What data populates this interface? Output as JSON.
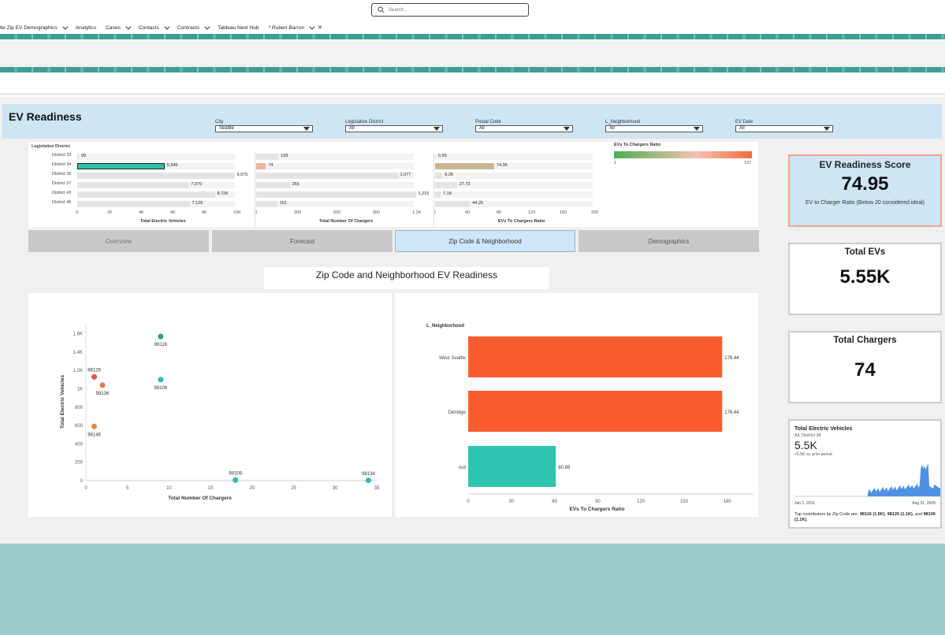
{
  "search": {
    "placeholder": "Search..."
  },
  "nav": [
    {
      "label": "ttle Zip EV Demographics",
      "chevron": true
    },
    {
      "label": "Analytics",
      "chevron": false
    },
    {
      "label": "Cases",
      "chevron": true
    },
    {
      "label": "Contacts",
      "chevron": true
    },
    {
      "label": "Contracts",
      "chevron": true
    },
    {
      "label": "Tableau Next Hub",
      "chevron": false
    },
    {
      "label": "* Ruben Barron",
      "chevron": true,
      "close": "✕"
    }
  ],
  "dashboard": {
    "title": "EV Readiness",
    "filters": [
      {
        "label": "City",
        "value": "Seattle"
      },
      {
        "label": "Legislative District",
        "value": "All"
      },
      {
        "label": "Postal Code",
        "value": "All"
      },
      {
        "label": "L_Neighborhood",
        "value": "All"
      },
      {
        "label": "EV Date",
        "value": "All"
      }
    ]
  },
  "bar_panels": {
    "row_header": "Legislative District",
    "districts": [
      "District 33",
      "District 34",
      "District 36",
      "District 37",
      "District 43",
      "District 46"
    ],
    "ev": {
      "title": "Total Electric Vehicles",
      "values": [
        99,
        5546,
        9975,
        7070,
        8726,
        7125
      ],
      "labels": [
        "99",
        "5,546",
        "9,975",
        "7,070",
        "8,726",
        "7,125"
      ],
      "ticks": [
        "0",
        "2K",
        "4K",
        "6K",
        "8K",
        "10K"
      ],
      "max": 10000,
      "color": "#2bbfa9",
      "selected": 1
    },
    "chargers": {
      "title": "Total Number Of Chargers",
      "values": [
        169,
        74,
        1077,
        255,
        1215,
        161
      ],
      "labels": [
        "169",
        "74",
        "1,077",
        "255",
        "1,215",
        "161"
      ],
      "ticks": [
        "0",
        "300",
        "600",
        "900",
        "1.2K"
      ],
      "max": 1200,
      "color": "#f4b09e"
    },
    "ratio": {
      "title": "EVs To Chargers Ratio",
      "values": [
        0.59,
        74.95,
        9.26,
        27.73,
        7.18,
        44.25
      ],
      "labels": [
        "0.59",
        "74.95",
        "9.26",
        "27.73",
        "7.18",
        "44.25"
      ],
      "ticks": [
        "0",
        "40",
        "80",
        "120",
        "160",
        "200"
      ],
      "max": 200,
      "color": "#c9b58e"
    },
    "legend": {
      "title": "EVs To Chargers Ratio",
      "min": "1",
      "max": "197"
    }
  },
  "tabs": [
    "Overview",
    "Forecast",
    "Zip Code & Neighborhood",
    "Demographics"
  ],
  "section_title": "Zip Code and Neighborhood EV Readiness",
  "scatter": {
    "xlabel": "Total Number Of Chargers",
    "ylabel": "Total Electric Vehicles",
    "xticks": [
      "0",
      "5",
      "10",
      "15",
      "20",
      "25",
      "30",
      "35"
    ],
    "yticks": [
      "0",
      "200",
      "400",
      "600",
      "800",
      "1K",
      "1.2K",
      "1.4K",
      "1.6K"
    ],
    "points": [
      {
        "label": "98116",
        "x": 9,
        "y": 1570,
        "color": "#2e9b80"
      },
      {
        "label": "98126",
        "x": 1,
        "y": 1130,
        "color": "#e8563a"
      },
      {
        "label": "98136",
        "x": 2,
        "y": 1040,
        "color": "#e07a3e"
      },
      {
        "label": "98106",
        "x": 9,
        "y": 1100,
        "color": "#2bbfa9"
      },
      {
        "label": "98146",
        "x": 1,
        "y": 590,
        "color": "#e08a3e"
      },
      {
        "label": "98108",
        "x": 18,
        "y": 5,
        "color": "#2bbfa9"
      },
      {
        "label": "98134",
        "x": 34,
        "y": 2,
        "color": "#2bbfa9"
      }
    ]
  },
  "chart_data": [
    {
      "type": "bar",
      "ylabel": "Legislative District",
      "xlabel": "Total Electric Vehicles",
      "categories": [
        "District 33",
        "District 34",
        "District 36",
        "District 37",
        "District 43",
        "District 46"
      ],
      "values": [
        99,
        5546,
        9975,
        7070,
        8726,
        7125
      ],
      "xlim": [
        0,
        10000
      ]
    },
    {
      "type": "bar",
      "xlabel": "Total Number Of Chargers",
      "categories": [
        "District 33",
        "District 34",
        "District 36",
        "District 37",
        "District 43",
        "District 46"
      ],
      "values": [
        169,
        74,
        1077,
        255,
        1215,
        161
      ],
      "xlim": [
        0,
        1200
      ]
    },
    {
      "type": "bar",
      "xlabel": "EVs To Chargers Ratio",
      "categories": [
        "District 33",
        "District 34",
        "District 36",
        "District 37",
        "District 43",
        "District 46"
      ],
      "values": [
        0.59,
        74.95,
        9.26,
        27.73,
        7.18,
        44.25
      ],
      "xlim": [
        0,
        200
      ]
    },
    {
      "type": "scatter",
      "xlabel": "Total Number Of Chargers",
      "ylabel": "Total Electric Vehicles",
      "xlim": [
        0,
        35
      ],
      "ylim": [
        0,
        1700
      ],
      "points": [
        {
          "label": "98116",
          "x": 9,
          "y": 1570
        },
        {
          "label": "98126",
          "x": 1,
          "y": 1130
        },
        {
          "label": "98136",
          "x": 2,
          "y": 1040
        },
        {
          "label": "98106",
          "x": 9,
          "y": 1100
        },
        {
          "label": "98146",
          "x": 1,
          "y": 590
        },
        {
          "label": "98108",
          "x": 18,
          "y": 5
        },
        {
          "label": "98134",
          "x": 34,
          "y": 2
        }
      ]
    },
    {
      "type": "bar",
      "ylabel": "L_Neighborhood",
      "xlabel": "EVs To Chargers Ratio",
      "categories": [
        "West Seattle",
        "Delridge",
        "null"
      ],
      "values": [
        176.44,
        176.44,
        60.89
      ],
      "xlim": [
        0,
        190
      ]
    }
  ],
  "neighborhood": {
    "ylabel": "L_Neighborhood",
    "xlabel": "EVs To Chargers Ratio",
    "rows": [
      {
        "label": "West Seattle",
        "value": 176.44,
        "text": "176.44",
        "color": "#f95d2f"
      },
      {
        "label": "Delridge",
        "value": 176.44,
        "text": "176.44",
        "color": "#f95d2f"
      },
      {
        "label": "null",
        "value": 60.89,
        "text": "60.89",
        "color": "#2ec4b0"
      }
    ],
    "ticks": [
      "0",
      "30",
      "60",
      "90",
      "120",
      "150",
      "180"
    ],
    "max": 190
  },
  "kpi": {
    "score": {
      "title": "EV Readiness Score",
      "value": "74.95",
      "sub": "EV to Charger Ratio (Below 20 considered ideal)"
    },
    "evs": {
      "title": "Total EVs",
      "value": "5.55K"
    },
    "chargers": {
      "title": "Total Chargers",
      "value": "74"
    }
  },
  "spark": {
    "title": "Total Electric Vehicles",
    "sub": "All, District 34",
    "value": "5.5K",
    "delta": "+5.5K vs. prior period",
    "start": "Jan 1, 2011",
    "end": "Aug 31, 2025",
    "footer_prefix": "Top contributors by Zip Code are: ",
    "footer_a": "98116 (1.6K)",
    "footer_sep1": ", ",
    "footer_b": "98126 (1.1K)",
    "footer_sep2": ", and ",
    "footer_c": "98106 (1.1K)",
    "footer_end": ".",
    "color": "#2f7fe0"
  },
  "colors": {
    "accent": "#cde5f5",
    "teal_band": "#3f9e94",
    "bottom": "#9bcdc8"
  }
}
